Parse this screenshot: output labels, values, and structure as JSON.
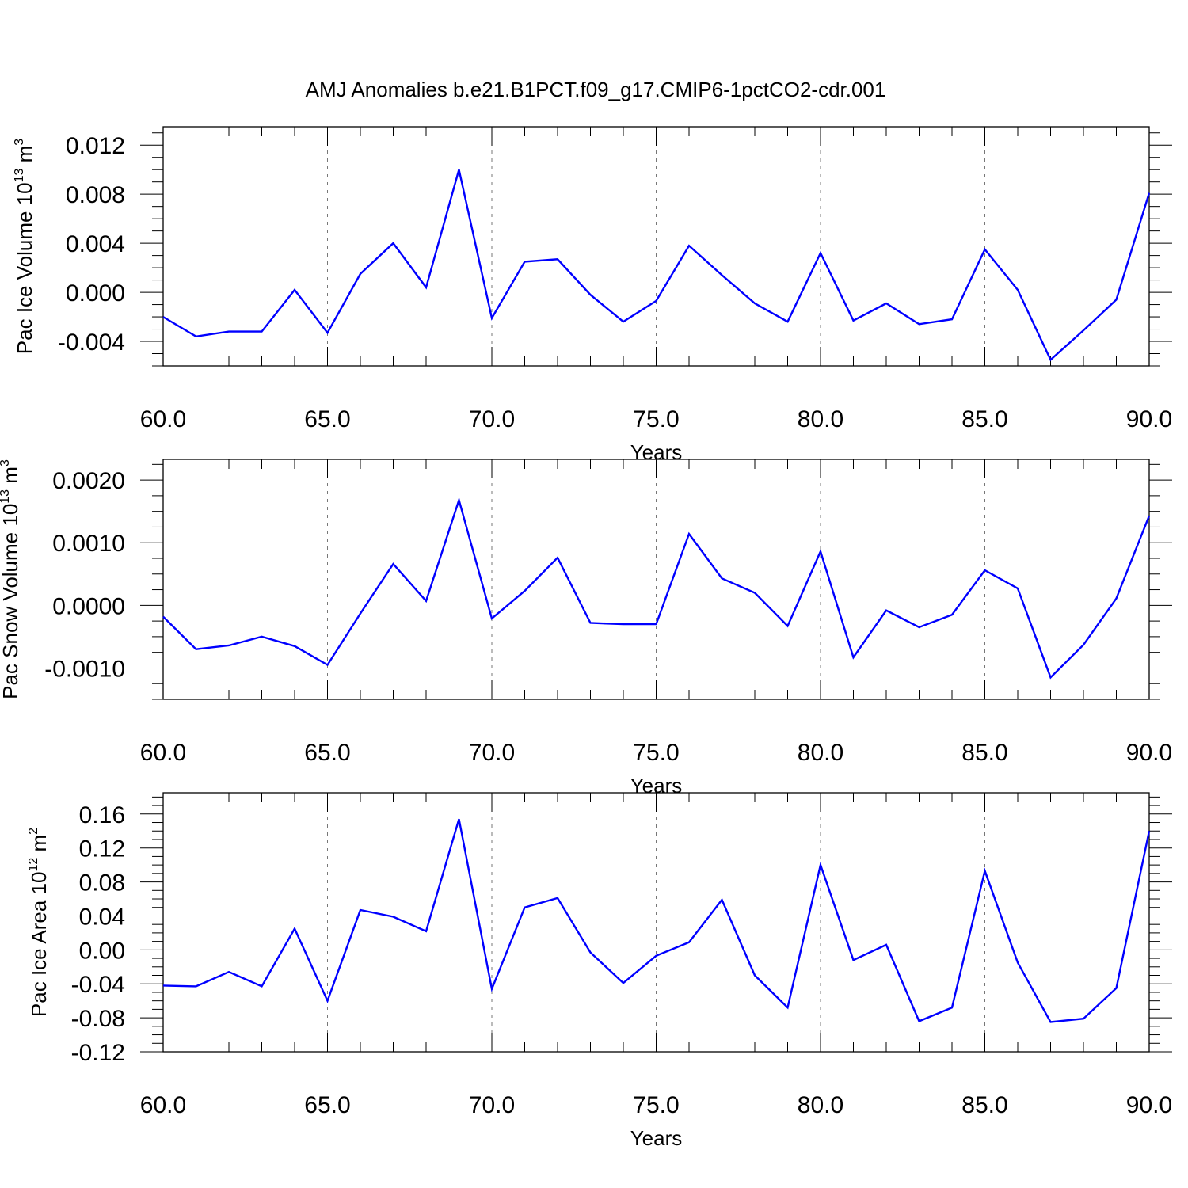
{
  "title": "AMJ Anomalies b.e21.B1PCT.f09_g17.CMIP6-1pctCO2-cdr.001",
  "chart_data": [
    {
      "type": "line",
      "ylabel_text": "Pac Ice Volume 10",
      "ylabel_exp": "13",
      "ylabel_unit": "m",
      "ylabel_unit_exp": "3",
      "xlabel": "Years",
      "xlim": [
        60,
        90
      ],
      "ylim": [
        -0.006,
        0.0135
      ],
      "xticks": [
        "60.0",
        "65.0",
        "70.0",
        "75.0",
        "80.0",
        "85.0",
        "90.0"
      ],
      "yticks": [
        {
          "v": 0.012,
          "label": "0.012"
        },
        {
          "v": 0.008,
          "label": "0.008"
        },
        {
          "v": 0.004,
          "label": "0.004"
        },
        {
          "v": 0.0,
          "label": "0.000"
        },
        {
          "v": -0.004,
          "label": "-0.004"
        }
      ],
      "color": "#0000ff",
      "x": [
        60,
        61,
        62,
        63,
        64,
        65,
        66,
        67,
        68,
        69,
        70,
        71,
        72,
        73,
        74,
        75,
        76,
        77,
        78,
        79,
        80,
        81,
        82,
        83,
        84,
        85,
        86,
        87,
        88,
        89,
        90
      ],
      "y": [
        -0.002,
        -0.0036,
        -0.0032,
        -0.0032,
        0.0002,
        -0.0033,
        0.0015,
        0.004,
        0.0004,
        0.01,
        -0.0021,
        0.0025,
        0.0027,
        -0.0002,
        -0.0024,
        -0.0007,
        0.0038,
        0.0014,
        -0.0009,
        -0.0024,
        0.0032,
        -0.0023,
        -0.0009,
        -0.0026,
        -0.0022,
        0.0035,
        0.0002,
        -0.0055,
        -0.0031,
        -0.0006,
        0.0081
      ]
    },
    {
      "type": "line",
      "ylabel_text": "Pac Snow Volume 10",
      "ylabel_exp": "13",
      "ylabel_unit": "m",
      "ylabel_unit_exp": "3",
      "xlabel": "Years",
      "xlim": [
        60,
        90
      ],
      "ylim": [
        -0.0015,
        0.00233
      ],
      "xticks": [
        "60.0",
        "65.0",
        "70.0",
        "75.0",
        "80.0",
        "85.0",
        "90.0"
      ],
      "yticks": [
        {
          "v": 0.002,
          "label": "0.0020"
        },
        {
          "v": 0.001,
          "label": "0.0010"
        },
        {
          "v": 0.0,
          "label": "0.0000"
        },
        {
          "v": -0.001,
          "label": "-0.0010"
        }
      ],
      "color": "#0000ff",
      "x": [
        60,
        61,
        62,
        63,
        64,
        65,
        66,
        67,
        68,
        69,
        70,
        71,
        72,
        73,
        74,
        75,
        76,
        77,
        78,
        79,
        80,
        81,
        82,
        83,
        84,
        85,
        86,
        87,
        88,
        89,
        90
      ],
      "y": [
        -0.00018,
        -0.0007,
        -0.00064,
        -0.0005,
        -0.00065,
        -0.00095,
        -0.00013,
        0.00066,
        7e-05,
        0.00168,
        -0.00021,
        0.00023,
        0.00076,
        -0.00028,
        -0.0003,
        -0.0003,
        0.00114,
        0.00043,
        0.0002,
        -0.00033,
        0.00086,
        -0.00083,
        -8e-05,
        -0.00035,
        -0.00015,
        0.00056,
        0.00027,
        -0.00115,
        -0.00063,
        0.00011,
        0.00143
      ]
    },
    {
      "type": "line",
      "ylabel_text": "Pac Ice Area 10",
      "ylabel_exp": "12",
      "ylabel_unit": "m",
      "ylabel_unit_exp": "2",
      "xlabel": "Years",
      "xlim": [
        60,
        90
      ],
      "ylim": [
        -0.12,
        0.185
      ],
      "xticks": [
        "60.0",
        "65.0",
        "70.0",
        "75.0",
        "80.0",
        "85.0",
        "90.0"
      ],
      "yticks": [
        {
          "v": 0.16,
          "label": "0.16"
        },
        {
          "v": 0.12,
          "label": "0.12"
        },
        {
          "v": 0.08,
          "label": "0.08"
        },
        {
          "v": 0.04,
          "label": "0.04"
        },
        {
          "v": 0.0,
          "label": "0.00"
        },
        {
          "v": -0.04,
          "label": "-0.04"
        },
        {
          "v": -0.08,
          "label": "-0.08"
        },
        {
          "v": -0.12,
          "label": "-0.12"
        }
      ],
      "color": "#0000ff",
      "x": [
        60,
        61,
        62,
        63,
        64,
        65,
        66,
        67,
        68,
        69,
        70,
        71,
        72,
        73,
        74,
        75,
        76,
        77,
        78,
        79,
        80,
        81,
        82,
        83,
        84,
        85,
        86,
        87,
        88,
        89,
        90
      ],
      "y": [
        -0.042,
        -0.043,
        -0.026,
        -0.043,
        0.025,
        -0.06,
        0.047,
        0.039,
        0.022,
        0.154,
        -0.046,
        0.05,
        0.061,
        -0.003,
        -0.039,
        -0.007,
        0.009,
        0.059,
        -0.03,
        -0.068,
        0.1,
        -0.012,
        0.006,
        -0.084,
        -0.068,
        0.093,
        -0.015,
        -0.085,
        -0.081,
        -0.045,
        0.14
      ]
    }
  ]
}
